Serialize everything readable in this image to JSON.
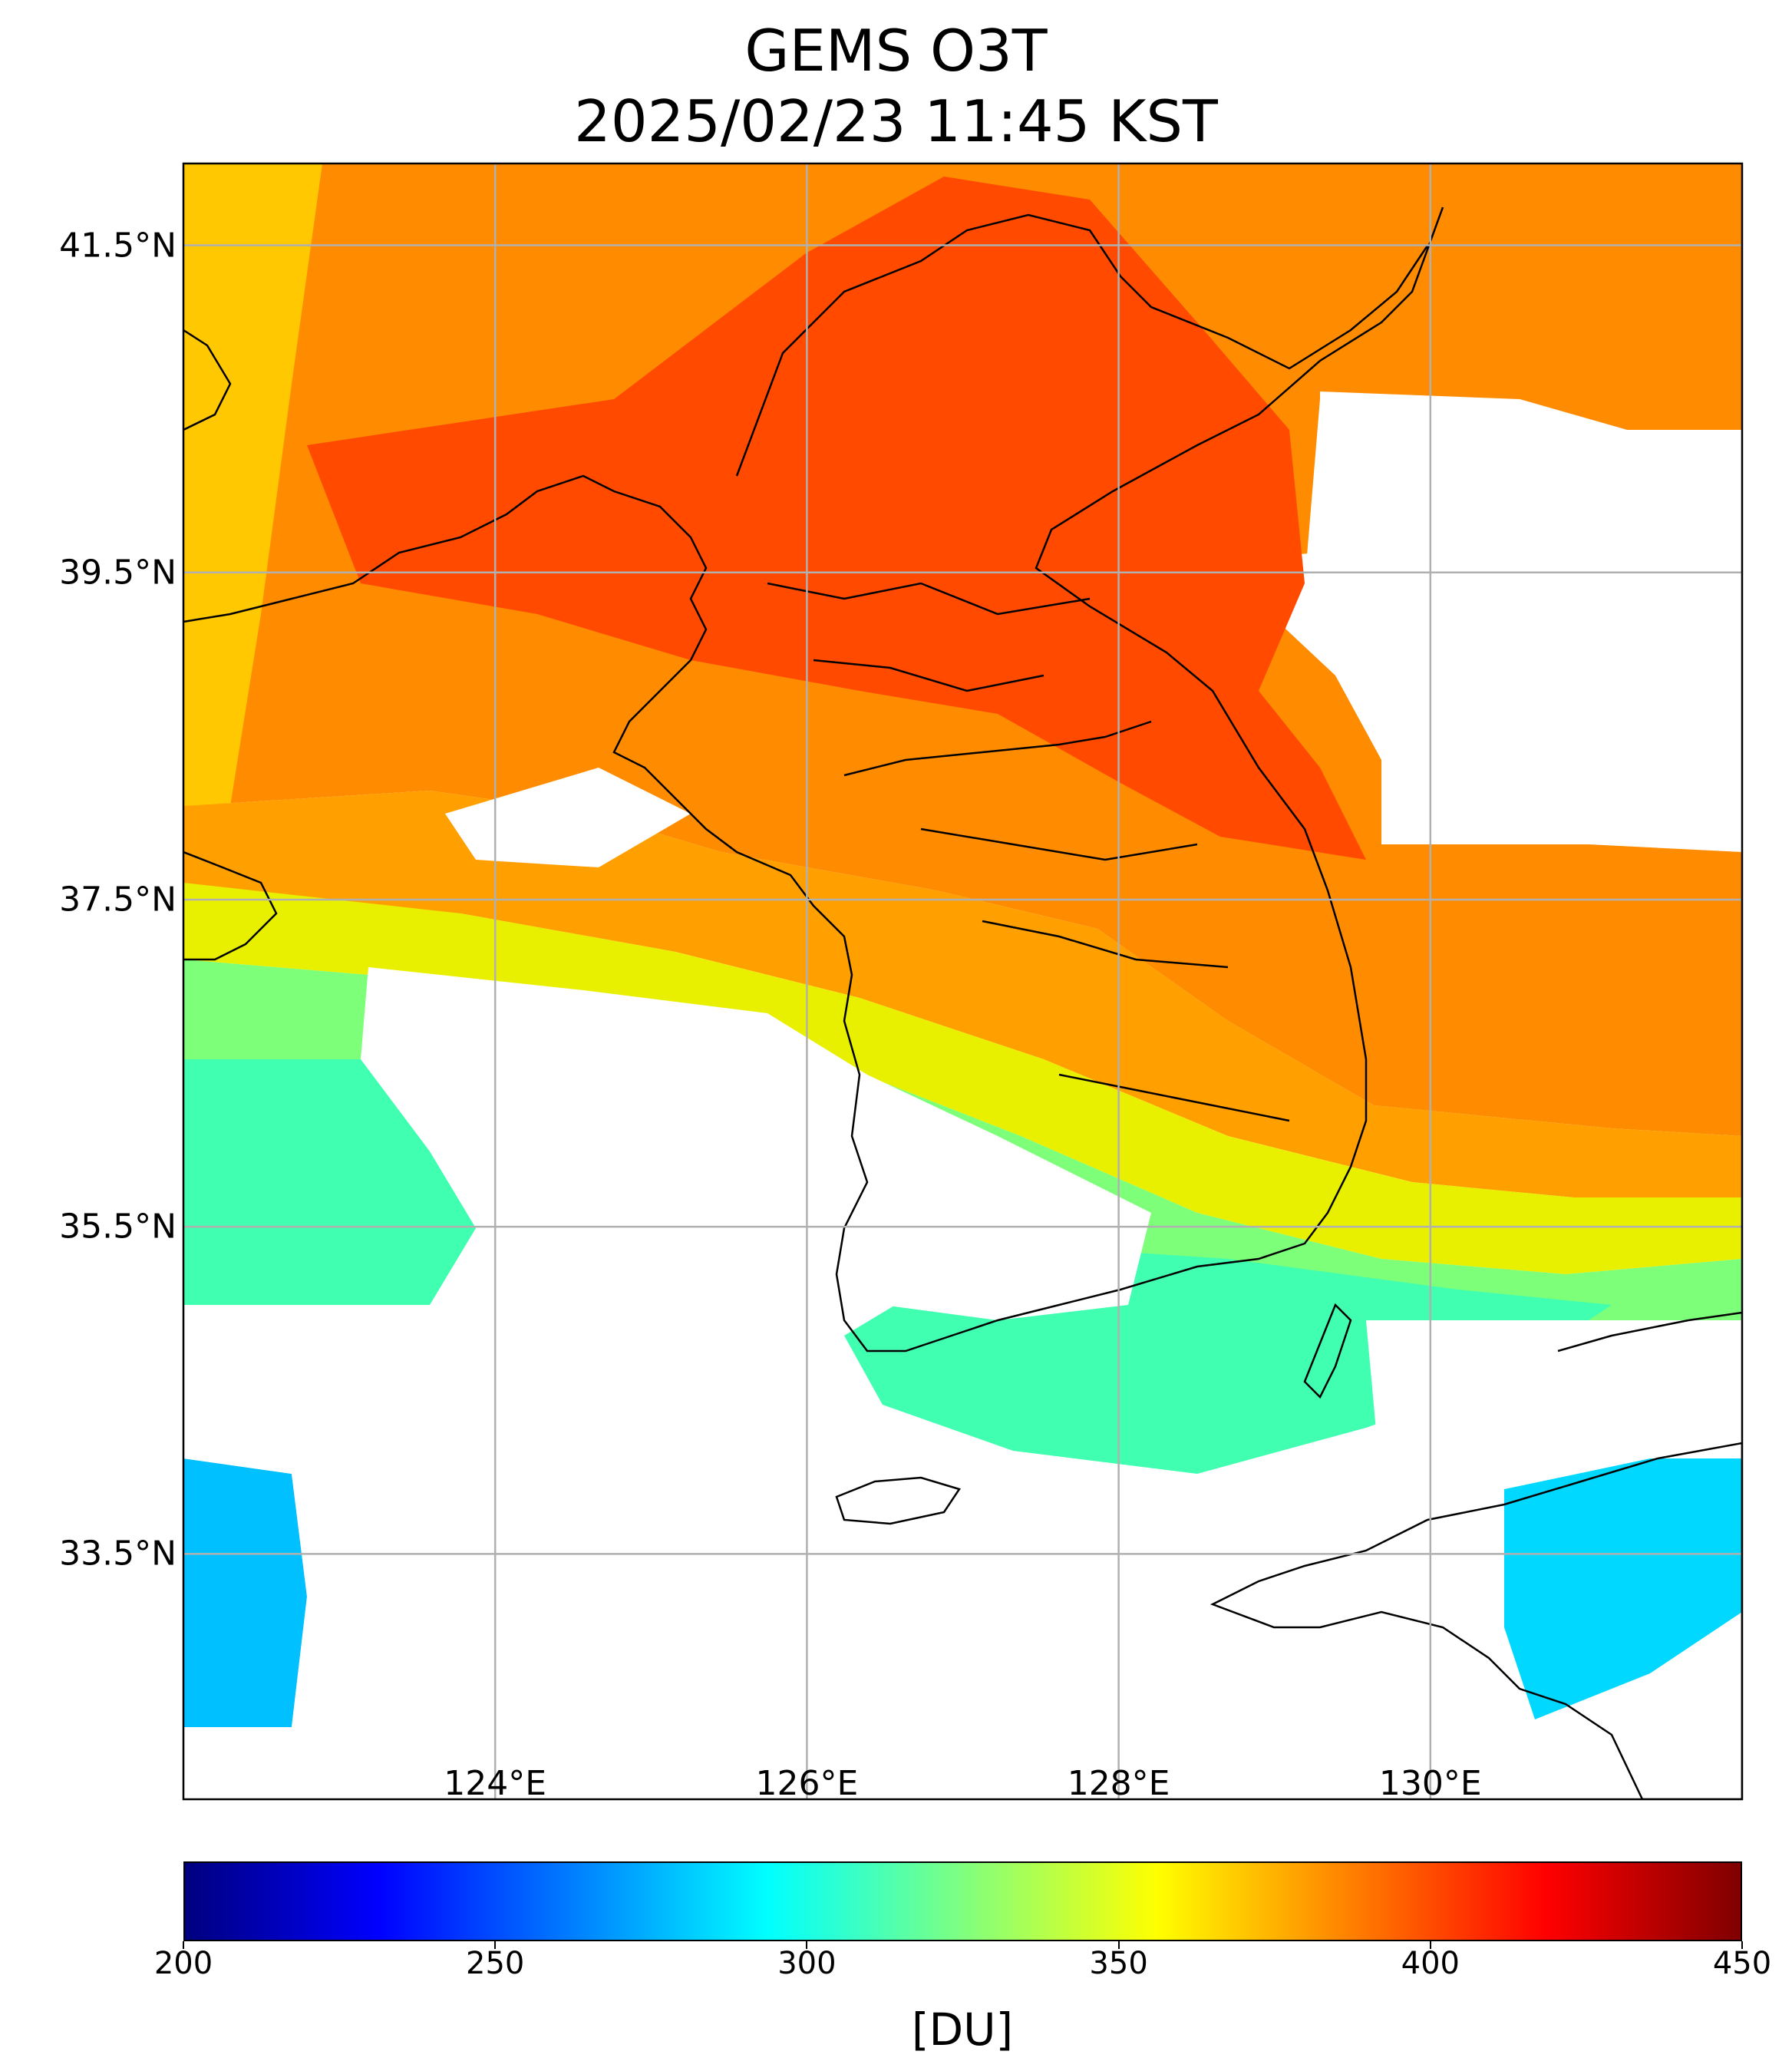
{
  "title": {
    "line1": "GEMS O3T",
    "line2": "2025/02/23 11:45 KST"
  },
  "map": {
    "lon_range": [
      122.0,
      132.0
    ],
    "lat_range": [
      32.0,
      42.0
    ],
    "lat_labels": [
      "41.5°N",
      "39.5°N",
      "37.5°N",
      "35.5°N",
      "33.5°N"
    ],
    "lat_values": [
      41.5,
      39.5,
      37.5,
      35.5,
      33.5
    ],
    "lon_labels": [
      "124°E",
      "126°E",
      "128°E",
      "130°E"
    ],
    "lon_values": [
      124,
      126,
      128,
      130
    ],
    "gridlines": true,
    "no_data_color": "#ffffff",
    "coastline_color": "#000000"
  },
  "colorbar": {
    "colormap": "jet",
    "min": 200,
    "max": 450,
    "tick_values": [
      200,
      250,
      300,
      350,
      400,
      450
    ],
    "tick_labels": [
      "200",
      "250",
      "300",
      "350",
      "400",
      "450"
    ],
    "unit": "[DU]"
  }
}
